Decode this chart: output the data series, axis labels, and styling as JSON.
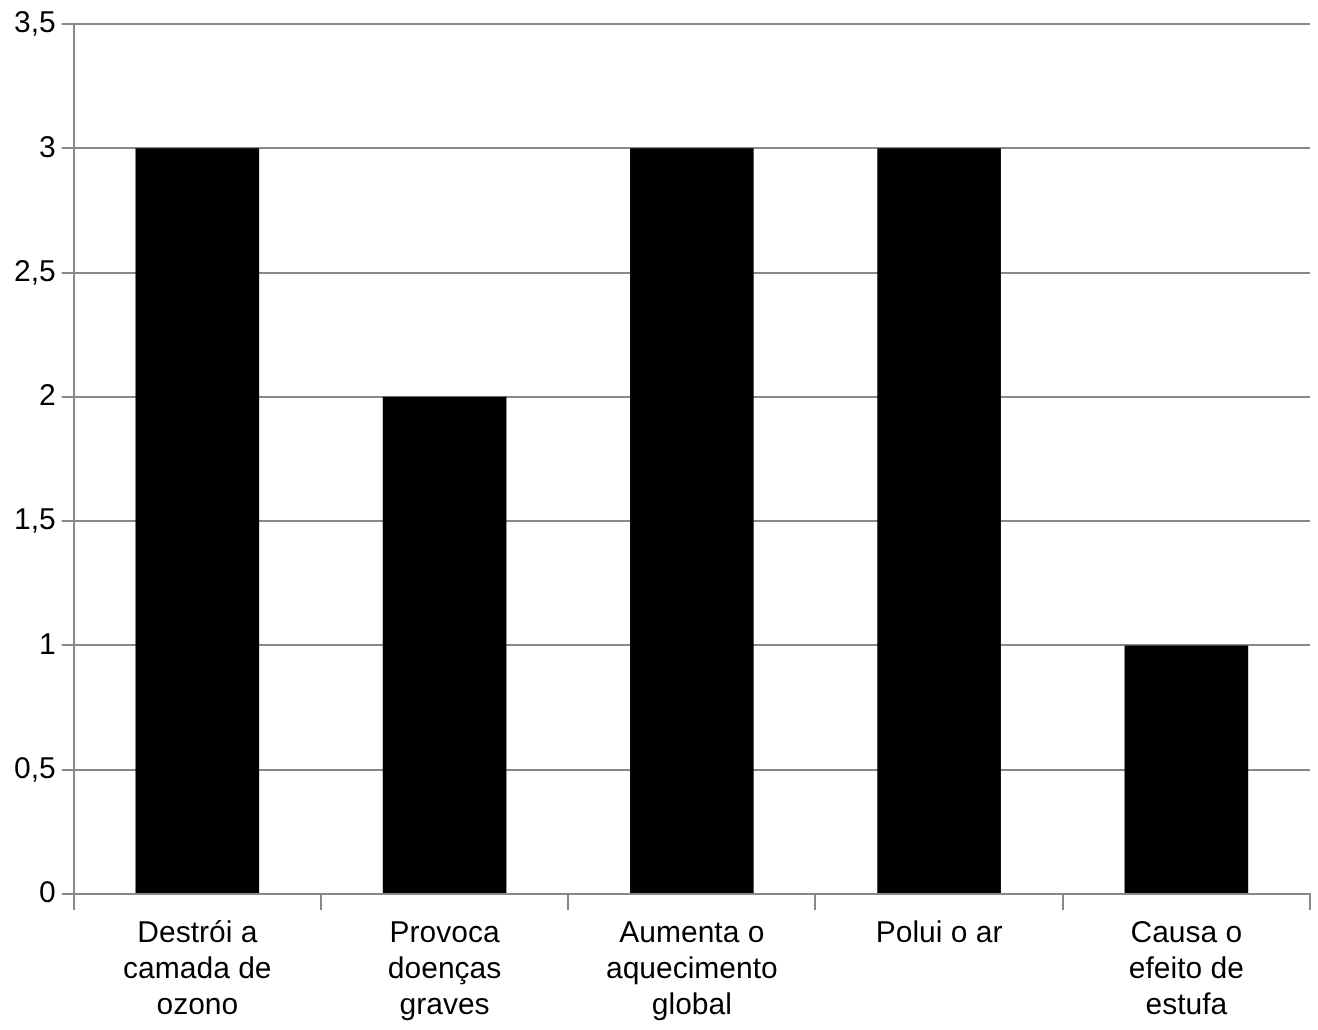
{
  "chart_data": {
    "type": "bar",
    "categories": [
      "Destrói a camada de ozono",
      "Provoca doenças graves",
      "Aumenta o aquecimento global",
      "Polui o ar",
      "Causa o efeito de estufa"
    ],
    "values": [
      3,
      2,
      3,
      3,
      1
    ],
    "color": "#000000",
    "ylim": [
      0,
      3.5
    ],
    "yticks": [
      0,
      {
        "value": 0.5,
        "label": "0,5"
      },
      1,
      {
        "value": 1.5,
        "label": "1,5"
      },
      2,
      {
        "value": 2.5,
        "label": "2,5"
      },
      3,
      {
        "value": 3.5,
        "label": "3,5"
      }
    ],
    "grid": "y",
    "legend": false
  }
}
